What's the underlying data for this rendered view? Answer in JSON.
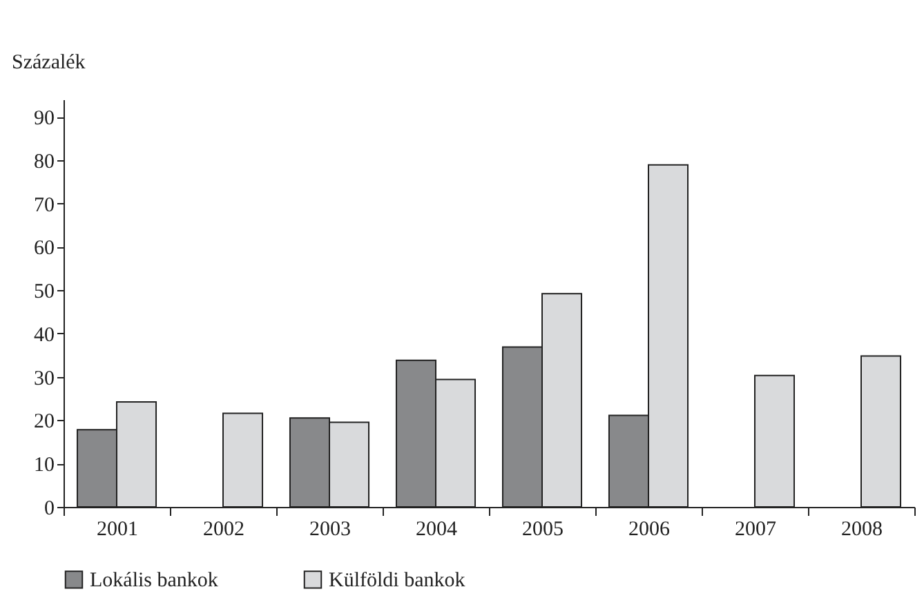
{
  "chart_data": {
    "type": "bar",
    "ylabel": "Százalék",
    "categories": [
      "2001",
      "2002",
      "2003",
      "2004",
      "2005",
      "2006",
      "2007",
      "2008"
    ],
    "series": [
      {
        "name": "Lokális bankok",
        "color": "#88898b",
        "values": [
          17.8,
          null,
          20.5,
          33.8,
          36.9,
          21.1,
          null,
          null
        ]
      },
      {
        "name": "Külföldi bankok",
        "color": "#d9dadc",
        "values": [
          24.2,
          21.6,
          19.5,
          29.4,
          49.2,
          78.9,
          30.3,
          34.8
        ]
      }
    ],
    "ylim": [
      0,
      94
    ],
    "yticks": [
      0,
      10,
      20,
      30,
      40,
      50,
      60,
      70,
      80,
      90
    ],
    "grid": false,
    "legend": "bottom"
  }
}
